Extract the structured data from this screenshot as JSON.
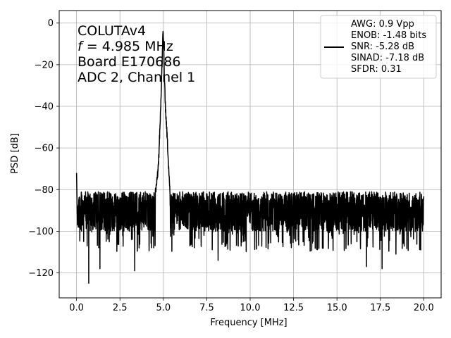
{
  "chart_data": {
    "type": "line",
    "title": "",
    "xlabel": "Frequency [MHz]",
    "ylabel": "PSD [dB]",
    "xlim": [
      -1.0,
      21.0
    ],
    "ylim": [
      -132,
      6
    ],
    "xticks": [
      0.0,
      2.5,
      5.0,
      7.5,
      10.0,
      12.5,
      15.0,
      17.5,
      20.0
    ],
    "xtick_labels": [
      "0.0",
      "2.5",
      "5.0",
      "7.5",
      "10.0",
      "12.5",
      "15.0",
      "17.5",
      "20.0"
    ],
    "yticks": [
      0,
      -20,
      -40,
      -60,
      -80,
      -100,
      -120
    ],
    "ytick_labels": [
      "0",
      "−20",
      "−40",
      "−60",
      "−80",
      "−100",
      "−120"
    ],
    "grid": true,
    "legend_position": "top-right",
    "annotation_position": "top-left",
    "annotation": {
      "line1": "COLUTAv4",
      "line2_symbol": "f",
      "line2_rest": " = 4.985 MHz",
      "line3": "Board E170686",
      "line4": "ADC 2, Channel 1"
    },
    "legend_entries": [
      "AWG: 0.9 Vpp",
      "ENOB: -1.48 bits",
      "SNR: -5.28 dB",
      "SINAD: -7.18 dB",
      "SFDR: 0.31"
    ],
    "series": [
      {
        "color": "#000000",
        "x": [
          0.0,
          0.05,
          0.1,
          0.5,
          1.0,
          1.5,
          2.0,
          2.5,
          3.0,
          3.5,
          4.0,
          4.3,
          4.5,
          4.6,
          4.7,
          4.75,
          4.8,
          4.85,
          4.9,
          4.95,
          4.985,
          5.02,
          5.05,
          5.1,
          5.15,
          5.2,
          5.25,
          5.3,
          5.4,
          5.5,
          5.7,
          6.0,
          6.5,
          7.0,
          7.5,
          8.0,
          9.0,
          10.0,
          11.0,
          12.0,
          13.0,
          14.0,
          15.0,
          16.0,
          17.0,
          18.0,
          19.0,
          20.0
        ],
        "y": [
          -72,
          -88,
          -92,
          -90,
          -91,
          -91,
          -91,
          -91,
          -90,
          -90,
          -89,
          -87,
          -82,
          -76,
          -68,
          -60,
          -48,
          -38,
          -24,
          -10,
          0,
          -10,
          -22,
          -34,
          -44,
          -50,
          -58,
          -68,
          -82,
          -88,
          -90,
          -91,
          -91,
          -91,
          -91,
          -91,
          -91,
          -91,
          -91,
          -91,
          -91,
          -91,
          -91,
          -91,
          -91,
          -91,
          -91,
          -92
        ],
        "noise_band": {
          "x_range": [
            0.05,
            20.0
          ],
          "typical_upper": -81,
          "typical_lower": -100,
          "min_dips": [
            {
              "x": 0.7,
              "y": -125
            },
            {
              "x": 1.35,
              "y": -118
            },
            {
              "x": 3.35,
              "y": -119
            },
            {
              "x": 4.45,
              "y": -108
            },
            {
              "x": 8.15,
              "y": -114
            },
            {
              "x": 16.7,
              "y": -117
            },
            {
              "x": 17.6,
              "y": -118
            },
            {
              "x": 18.4,
              "y": -111
            }
          ]
        }
      }
    ]
  }
}
